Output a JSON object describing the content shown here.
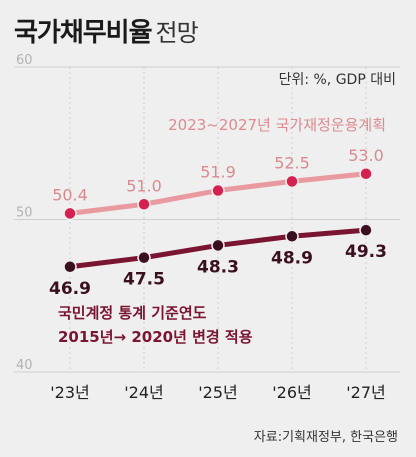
{
  "title": {
    "main": "국가채무비율",
    "sub": "전망"
  },
  "unit": "단위: %, GDP 대비",
  "source": "자료:기획재정부, 한국은행",
  "colors": {
    "plan": "#e89aa0",
    "plan_point": "#d6204f",
    "actual": "#7a1531",
    "actual_point": "#3a1020",
    "grid": "#cfcfcf",
    "background": "#efefef"
  },
  "chart_data": {
    "type": "line",
    "categories": [
      "'23년",
      "'24년",
      "'25년",
      "'26년",
      "'27년"
    ],
    "y_ticks": [
      "60",
      "50",
      "40"
    ],
    "ylim": [
      40,
      60
    ],
    "grid": true,
    "series": [
      {
        "name": "2023~2027년 국가재정운용계획",
        "values": [
          50.4,
          51.0,
          51.9,
          52.5,
          53.0
        ],
        "labels": [
          "50.4",
          "51.0",
          "51.9",
          "52.5",
          "53.0"
        ]
      },
      {
        "name": "국민계정 통계 기준연도 2015년→ 2020년 변경 적용",
        "name_lines": [
          "국민계정 통계 기준연도",
          "2015년→ 2020년 변경 적용"
        ],
        "values": [
          46.9,
          47.5,
          48.3,
          48.9,
          49.3
        ],
        "labels": [
          "46.9",
          "47.5",
          "48.3",
          "48.9",
          "49.3"
        ]
      }
    ]
  }
}
